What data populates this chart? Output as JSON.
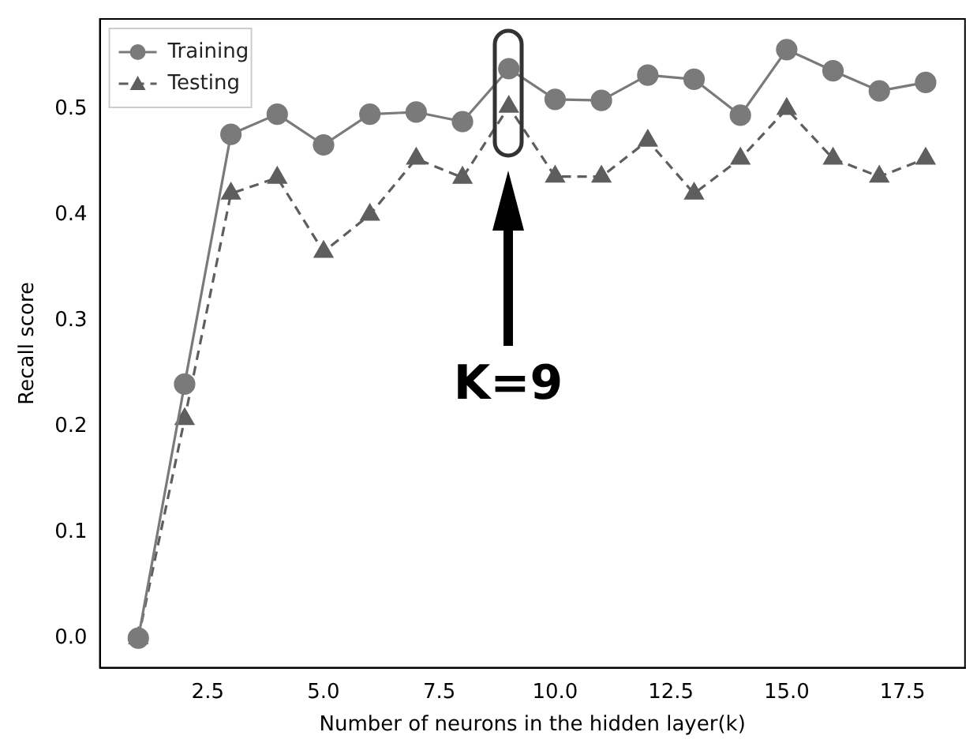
{
  "chart_data": {
    "type": "line",
    "xlabel": "Number of neurons in the hidden layer(k)",
    "ylabel": "Recall score",
    "x": [
      1,
      2,
      3,
      4,
      5,
      6,
      7,
      8,
      9,
      10,
      11,
      12,
      13,
      14,
      15,
      16,
      17,
      18
    ],
    "series": [
      {
        "name": "Training",
        "color": "#7a7a7a",
        "marker": "circle",
        "line_style": "solid",
        "values": [
          0,
          0.24,
          0.476,
          0.495,
          0.466,
          0.495,
          0.497,
          0.488,
          0.538,
          0.509,
          0.508,
          0.532,
          0.528,
          0.494,
          0.556,
          0.536,
          0.517,
          0.525
        ]
      },
      {
        "name": "Testing",
        "color": "#5e5e5e",
        "marker": "triangle",
        "line_style": "dashed",
        "values": [
          0,
          0.207,
          0.42,
          0.435,
          0.365,
          0.4,
          0.453,
          0.435,
          0.502,
          0.436,
          0.436,
          0.47,
          0.42,
          0.453,
          0.5,
          0.453,
          0.436,
          0.453
        ]
      }
    ],
    "xlim": [
      0.17,
      18.85
    ],
    "xticks": [
      {
        "value": 2.5,
        "label": "2.5"
      },
      {
        "value": 5,
        "label": "5.0"
      },
      {
        "value": 7.5,
        "label": "7.5"
      },
      {
        "value": 10,
        "label": "10.0"
      },
      {
        "value": 12.5,
        "label": "12.5"
      },
      {
        "value": 15,
        "label": "15.0"
      },
      {
        "value": 17.5,
        "label": "17.5"
      }
    ],
    "ylim": [
      -0.028,
      0.585
    ],
    "yticks": [
      {
        "value": 0,
        "label": "0.0"
      },
      {
        "value": 0.1,
        "label": "0.1"
      },
      {
        "value": 0.2,
        "label": "0.2"
      },
      {
        "value": 0.3,
        "label": "0.3"
      },
      {
        "value": 0.4,
        "label": "0.4"
      },
      {
        "value": 0.5,
        "label": "0.5"
      }
    ],
    "annotations": [
      "K=9"
    ],
    "legend": "top left",
    "grid": false
  }
}
